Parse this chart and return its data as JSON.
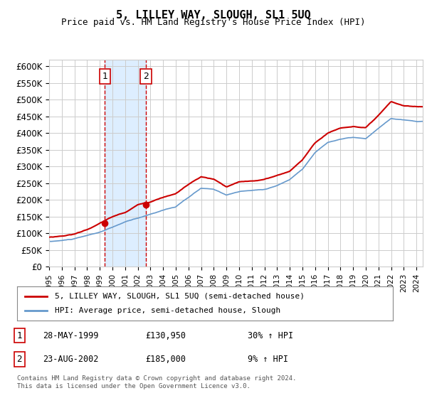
{
  "title": "5, LILLEY WAY, SLOUGH, SL1 5UQ",
  "subtitle": "Price paid vs. HM Land Registry's House Price Index (HPI)",
  "ylabel_ticks": [
    "£0",
    "£50K",
    "£100K",
    "£150K",
    "£200K",
    "£250K",
    "£300K",
    "£350K",
    "£400K",
    "£450K",
    "£500K",
    "£550K",
    "£600K"
  ],
  "ylim": [
    0,
    620000
  ],
  "xlim_start": 1995.0,
  "xlim_end": 2024.5,
  "purchase1_x": 1999.4,
  "purchase1_y": 130950,
  "purchase2_x": 2002.65,
  "purchase2_y": 185000,
  "legend_label_red": "5, LILLEY WAY, SLOUGH, SL1 5UQ (semi-detached house)",
  "legend_label_blue": "HPI: Average price, semi-detached house, Slough",
  "table_rows": [
    {
      "num": "1",
      "date": "28-MAY-1999",
      "price": "£130,950",
      "change": "30% ↑ HPI"
    },
    {
      "num": "2",
      "date": "23-AUG-2002",
      "price": "£185,000",
      "change": "9% ↑ HPI"
    }
  ],
  "footer": "Contains HM Land Registry data © Crown copyright and database right 2024.\nThis data is licensed under the Open Government Licence v3.0.",
  "red_color": "#cc0000",
  "blue_color": "#6699cc",
  "shade_color": "#ddeeff",
  "grid_color": "#cccccc",
  "background_color": "#ffffff"
}
